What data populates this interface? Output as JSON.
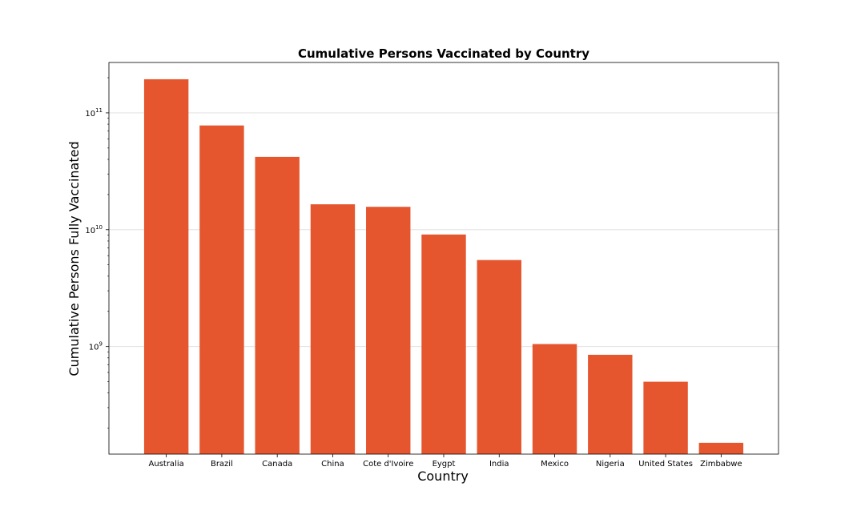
{
  "chart_data": {
    "type": "bar",
    "title": "Cumulative Persons Vaccinated by Country",
    "xlabel": "Country",
    "ylabel": "Cumulative Persons Fully Vaccinated",
    "yscale": "log",
    "ylim": [
      120000000,
      270000000000
    ],
    "grid": "y-major",
    "bar_color": "#E5562F",
    "categories": [
      "Australia",
      "Brazil",
      "Canada",
      "China",
      "Cote d'Ivoire",
      "Eygpt",
      "India",
      "Mexico",
      "Nigeria",
      "United States",
      "Zimbabwe"
    ],
    "values": [
      194000000000,
      78000000000,
      42000000000,
      16500000000,
      15700000000,
      9100000000,
      5500000000,
      1050000000,
      850000000,
      500000000,
      150000000
    ],
    "yticks": [
      {
        "value": 1000000000,
        "base": "10",
        "exp": "9"
      },
      {
        "value": 10000000000,
        "base": "10",
        "exp": "10"
      },
      {
        "value": 100000000000,
        "base": "10",
        "exp": "11"
      }
    ]
  }
}
